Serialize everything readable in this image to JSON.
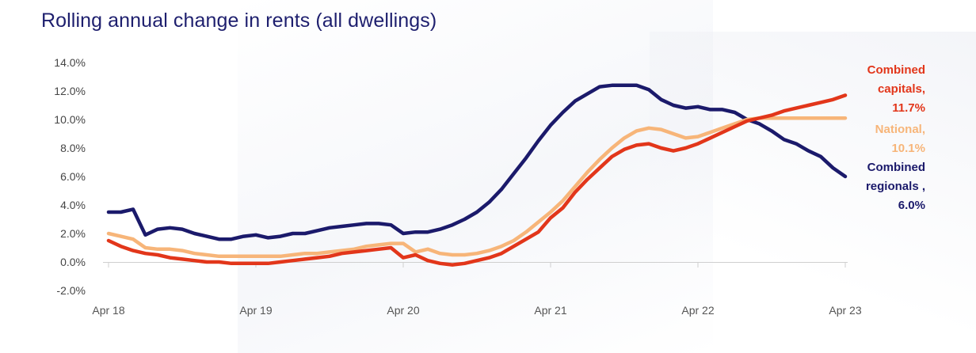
{
  "title": "Rolling annual change in rents (all dwellings)",
  "colors": {
    "combined_capitals": "#e2361a",
    "national": "#f7b579",
    "combined_regionals": "#1b1a6b",
    "axis": "#cfcfcf",
    "title": "#1e1f6e"
  },
  "chart_data": {
    "type": "line",
    "title": "Rolling annual change in rents (all dwellings)",
    "xlabel": "",
    "ylabel": "",
    "ylim": [
      -2.0,
      14.0
    ],
    "y_ticks": [
      "14.0%",
      "12.0%",
      "10.0%",
      "8.0%",
      "6.0%",
      "4.0%",
      "2.0%",
      "0.0%",
      "-2.0%"
    ],
    "y_tick_values": [
      14,
      12,
      10,
      8,
      6,
      4,
      2,
      0,
      -2
    ],
    "x_ticks": [
      "Apr 18",
      "Apr 19",
      "Apr 20",
      "Apr 21",
      "Apr 22",
      "Apr 23"
    ],
    "x_tick_index": [
      0,
      12,
      24,
      36,
      48,
      60
    ],
    "x": [
      "Apr 18",
      "May 18",
      "Jun 18",
      "Jul 18",
      "Aug 18",
      "Sep 18",
      "Oct 18",
      "Nov 18",
      "Dec 18",
      "Jan 19",
      "Feb 19",
      "Mar 19",
      "Apr 19",
      "May 19",
      "Jun 19",
      "Jul 19",
      "Aug 19",
      "Sep 19",
      "Oct 19",
      "Nov 19",
      "Dec 19",
      "Jan 20",
      "Feb 20",
      "Mar 20",
      "Apr 20",
      "May 20",
      "Jun 20",
      "Jul 20",
      "Aug 20",
      "Sep 20",
      "Oct 20",
      "Nov 20",
      "Dec 20",
      "Jan 21",
      "Feb 21",
      "Mar 21",
      "Apr 21",
      "May 21",
      "Jun 21",
      "Jul 21",
      "Aug 21",
      "Sep 21",
      "Oct 21",
      "Nov 21",
      "Dec 21",
      "Jan 22",
      "Feb 22",
      "Mar 22",
      "Apr 22",
      "May 22",
      "Jun 22",
      "Jul 22",
      "Aug 22",
      "Sep 22",
      "Oct 22",
      "Nov 22",
      "Dec 22",
      "Jan 23",
      "Feb 23",
      "Mar 23",
      "Apr 23"
    ],
    "grid": false,
    "legend": "end-of-line labels (right)",
    "series": [
      {
        "key": "combined_regionals",
        "values": [
          3.5,
          3.5,
          3.7,
          1.9,
          2.3,
          2.4,
          2.3,
          2.0,
          1.8,
          1.6,
          1.6,
          1.8,
          1.9,
          1.7,
          1.8,
          2.0,
          2.0,
          2.2,
          2.4,
          2.5,
          2.6,
          2.7,
          2.7,
          2.6,
          2.0,
          2.1,
          2.1,
          2.3,
          2.6,
          3.0,
          3.5,
          4.2,
          5.1,
          6.2,
          7.3,
          8.5,
          9.6,
          10.5,
          11.3,
          11.8,
          12.3,
          12.4,
          12.4,
          12.4,
          12.1,
          11.4,
          11.0,
          10.8,
          10.9,
          10.7,
          10.7,
          10.5,
          10.0,
          9.7,
          9.2,
          8.6,
          8.3,
          7.8,
          7.4,
          6.6,
          6.0
        ]
      },
      {
        "key": "national",
        "values": [
          2.0,
          1.8,
          1.6,
          1.0,
          0.9,
          0.9,
          0.8,
          0.6,
          0.5,
          0.4,
          0.4,
          0.4,
          0.4,
          0.4,
          0.4,
          0.5,
          0.6,
          0.6,
          0.7,
          0.8,
          0.9,
          1.1,
          1.2,
          1.3,
          1.3,
          0.7,
          0.9,
          0.6,
          0.5,
          0.5,
          0.6,
          0.8,
          1.1,
          1.5,
          2.1,
          2.8,
          3.5,
          4.3,
          5.3,
          6.3,
          7.2,
          8.0,
          8.7,
          9.2,
          9.4,
          9.3,
          9.0,
          8.7,
          8.8,
          9.1,
          9.4,
          9.7,
          10.0,
          10.1,
          10.1,
          10.1,
          10.1,
          10.1,
          10.1,
          10.1,
          10.1
        ]
      },
      {
        "key": "combined_capitals",
        "values": [
          1.5,
          1.1,
          0.8,
          0.6,
          0.5,
          0.3,
          0.2,
          0.1,
          0.0,
          0.0,
          -0.1,
          -0.1,
          -0.1,
          -0.1,
          0.0,
          0.1,
          0.2,
          0.3,
          0.4,
          0.6,
          0.7,
          0.8,
          0.9,
          1.0,
          0.3,
          0.5,
          0.1,
          -0.1,
          -0.2,
          -0.1,
          0.1,
          0.3,
          0.6,
          1.1,
          1.6,
          2.1,
          3.1,
          3.8,
          4.9,
          5.8,
          6.6,
          7.4,
          7.9,
          8.2,
          8.3,
          8.0,
          7.8,
          8.0,
          8.3,
          8.7,
          9.1,
          9.5,
          9.9,
          10.1,
          10.3,
          10.6,
          10.8,
          11.0,
          11.2,
          11.4,
          11.7
        ]
      }
    ],
    "end_labels": [
      {
        "key": "combined_capitals",
        "lines": [
          "Combined",
          "capitals,",
          "11.7%"
        ]
      },
      {
        "key": "national",
        "lines": [
          "National,",
          "10.1%"
        ]
      },
      {
        "key": "combined_regionals",
        "lines": [
          "Combined",
          "regionals ,",
          "6.0%"
        ]
      }
    ]
  }
}
